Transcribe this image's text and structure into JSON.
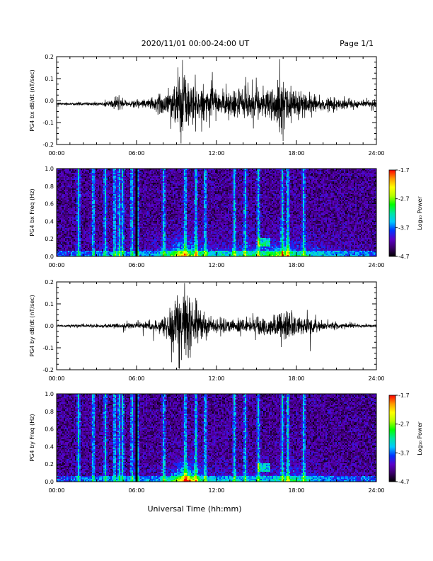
{
  "header": {
    "title": "2020/11/01  00:00-24:00 UT",
    "page": "Page 1/1"
  },
  "xlabel": "Universal Time (hh:mm)",
  "colorbar": {
    "label": "Log₁₀ Power",
    "range": [
      -4.7,
      -1.7
    ],
    "ticks": [
      "-1.7",
      "-2.7",
      "-3.7",
      "-4.7"
    ],
    "colormap": [
      "#000000",
      "#3a0069",
      "#5a00c8",
      "#0033ff",
      "#00c8ff",
      "#00e6a0",
      "#00ff00",
      "#b4ff00",
      "#ffff00",
      "#ff9900",
      "#ff0000"
    ]
  },
  "chart_data": [
    {
      "type": "line",
      "ylabel": "PG4 bx dB/dt (nT/sec)",
      "xlim": [
        0,
        24
      ],
      "ylim": [
        -0.2,
        0.2
      ],
      "xticks": [
        "00:00",
        "06:00",
        "12:00",
        "18:00",
        "24:00"
      ],
      "yticks": [
        "-0.2",
        "-0.1",
        "0.0",
        "0.1",
        "0.2"
      ],
      "baseline": -0.015,
      "activity": [
        [
          0,
          0.004
        ],
        [
          2,
          0.006
        ],
        [
          4,
          0.008
        ],
        [
          4.6,
          0.03
        ],
        [
          5.2,
          0.01
        ],
        [
          6,
          0.015
        ],
        [
          7.5,
          0.03
        ],
        [
          8.5,
          0.06
        ],
        [
          9.2,
          0.12
        ],
        [
          10,
          0.09
        ],
        [
          11,
          0.05
        ],
        [
          12.5,
          0.04
        ],
        [
          14,
          0.05
        ],
        [
          15.5,
          0.06
        ],
        [
          17,
          0.09
        ],
        [
          18,
          0.05
        ],
        [
          20,
          0.03
        ],
        [
          22,
          0.015
        ],
        [
          24,
          0.01
        ]
      ]
    },
    {
      "type": "heatmap",
      "ylabel": "PG4 bx Freq (Hz)",
      "xlim": [
        0,
        24
      ],
      "ylim": [
        0.0,
        1.0
      ],
      "xticks": [
        "00:00",
        "06:00",
        "12:00",
        "18:00",
        "24:00"
      ],
      "yticks": [
        "0.0",
        "0.2",
        "0.4",
        "0.6",
        "0.8",
        "1.0"
      ],
      "zlim": [
        -4.7,
        -1.7
      ]
    },
    {
      "type": "line",
      "ylabel": "PG4 by dB/dt (nT/sec)",
      "xlim": [
        0,
        24
      ],
      "ylim": [
        -0.2,
        0.2
      ],
      "xticks": [
        "00:00",
        "06:00",
        "12:00",
        "18:00",
        "24:00"
      ],
      "yticks": [
        "-0.2",
        "-0.1",
        "0.0",
        "0.1",
        "0.2"
      ],
      "baseline": 0.0,
      "activity": [
        [
          0,
          0.003
        ],
        [
          2,
          0.006
        ],
        [
          4,
          0.008
        ],
        [
          5,
          0.01
        ],
        [
          6,
          0.012
        ],
        [
          7.5,
          0.02
        ],
        [
          8.5,
          0.05
        ],
        [
          9.3,
          0.12
        ],
        [
          9.8,
          0.15
        ],
        [
          10.5,
          0.07
        ],
        [
          11.5,
          0.03
        ],
        [
          13,
          0.025
        ],
        [
          14.5,
          0.03
        ],
        [
          16,
          0.03
        ],
        [
          17.5,
          0.06
        ],
        [
          18.5,
          0.04
        ],
        [
          20,
          0.015
        ],
        [
          22,
          0.008
        ],
        [
          24,
          0.005
        ]
      ]
    },
    {
      "type": "heatmap",
      "ylabel": "PG4 by Freq (Hz)",
      "xlim": [
        0,
        24
      ],
      "ylim": [
        0.0,
        1.0
      ],
      "xticks": [
        "00:00",
        "06:00",
        "12:00",
        "18:00",
        "24:00"
      ],
      "yticks": [
        "0.0",
        "0.2",
        "0.4",
        "0.6",
        "0.8",
        "1.0"
      ],
      "zlim": [
        -4.7,
        -1.7
      ]
    }
  ]
}
